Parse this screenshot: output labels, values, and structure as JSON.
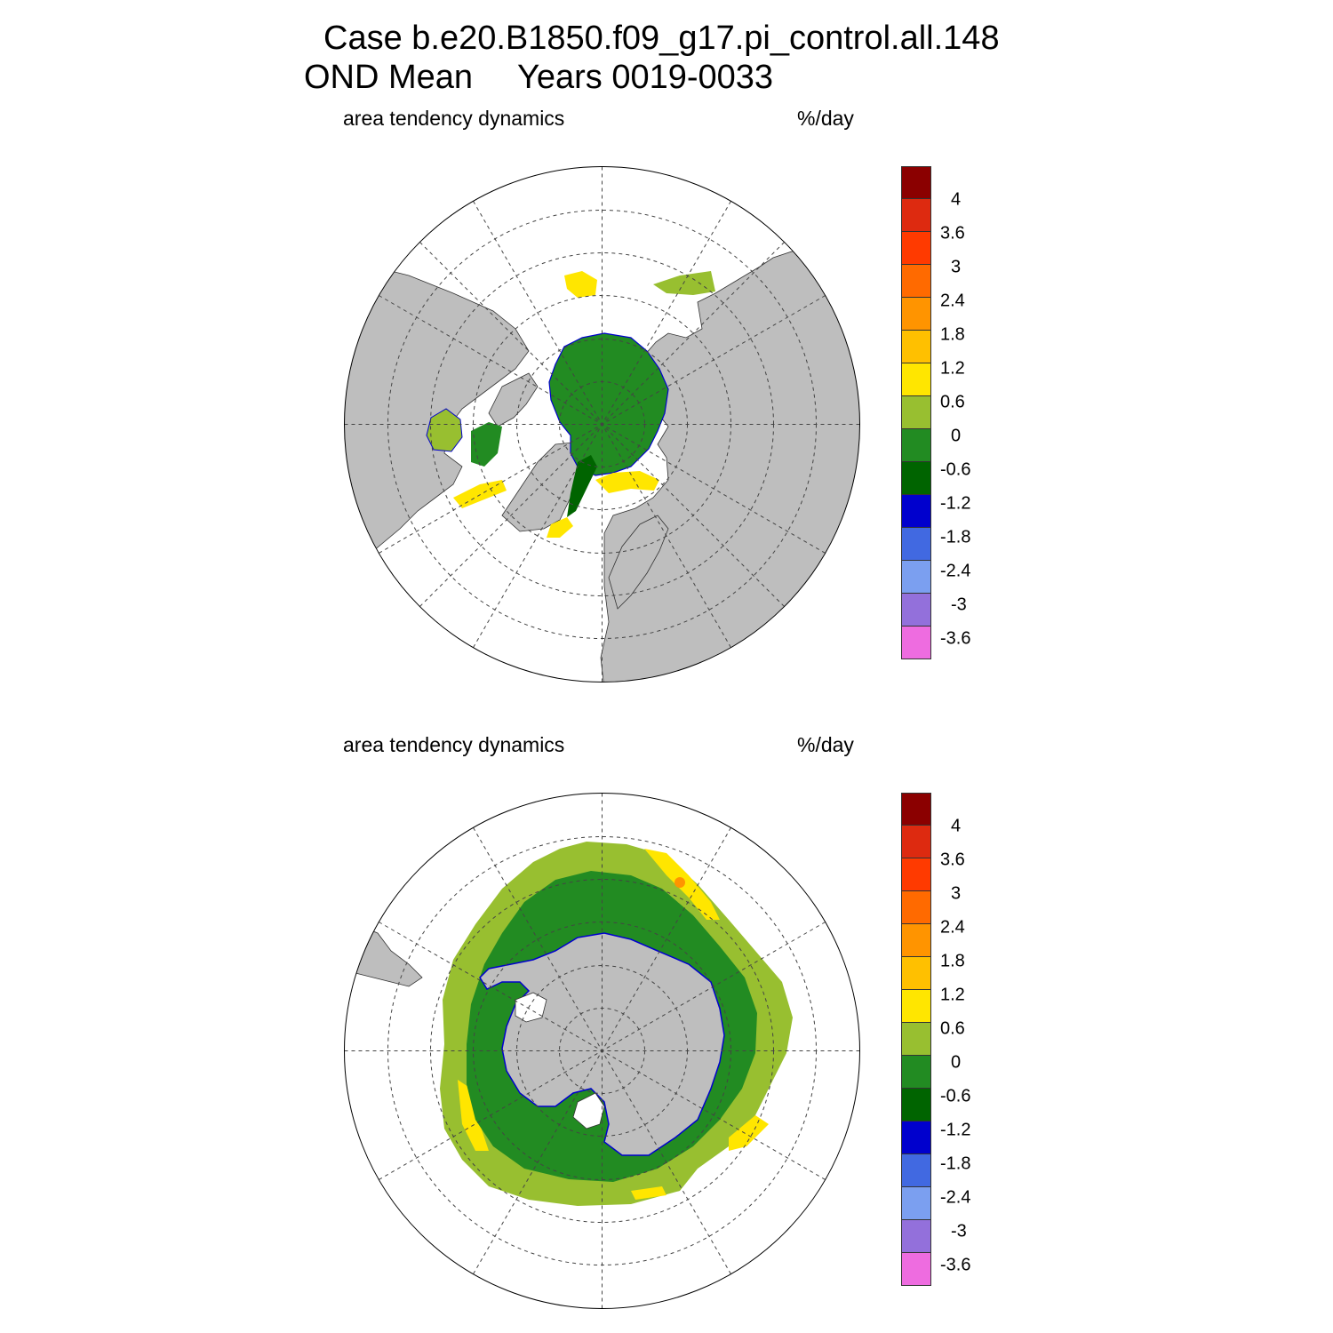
{
  "title": {
    "line1": "Case b.e20.B1850.f09_g17.pi_control.all.148",
    "line2_left": "OND Mean",
    "line2_right": "Years 0019-0033"
  },
  "panels": [
    {
      "name": "north",
      "variable": "area tendency dynamics",
      "units": "%/day"
    },
    {
      "name": "south",
      "variable": "area tendency dynamics",
      "units": "%/day"
    }
  ],
  "colorbar": {
    "colors": [
      "#8b0000",
      "#dd2a10",
      "#ff3a00",
      "#ff6a00",
      "#ff9400",
      "#ffc000",
      "#ffe600",
      "#98bf30",
      "#228b22",
      "#006400",
      "#0000cd",
      "#4169e1",
      "#7b9ff0",
      "#9370db",
      "#ee6ce0"
    ],
    "labels": [
      "4",
      "3.6",
      "3",
      "2.4",
      "1.8",
      "1.2",
      "0.6",
      "0",
      "-0.6",
      "-1.2",
      "-1.8",
      "-2.4",
      "-3",
      "-3.6"
    ]
  },
  "map_colors": {
    "land": "#bebebe",
    "ocean": "#ffffff",
    "graticule": "#444444"
  }
}
